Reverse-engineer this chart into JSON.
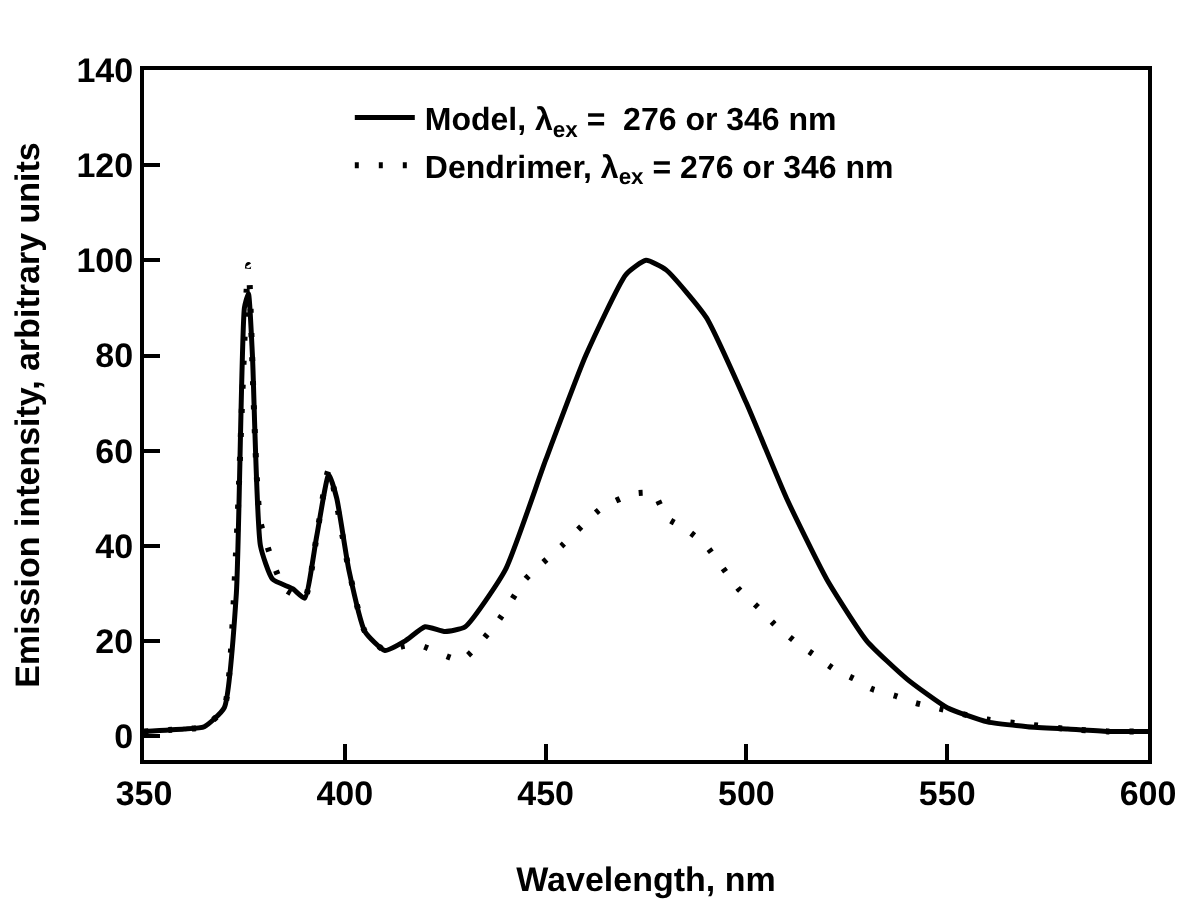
{
  "chart_data": {
    "type": "line",
    "xlabel": "Wavelength, nm",
    "ylabel": "Emission intensity, arbitrary units",
    "xlim": [
      350,
      600
    ],
    "xticks": [
      350,
      400,
      450,
      500,
      550,
      600
    ],
    "ylim": [
      -5,
      140
    ],
    "yticks": [
      0,
      20,
      40,
      60,
      80,
      100,
      120,
      140
    ],
    "legend": "top",
    "marker": "none",
    "series": [
      {
        "name": "Model, λ$_{ex}$ =  276 or 346 nm",
        "color": "#000000",
        "line_style": "solid",
        "x": [
          350,
          360,
          365,
          370,
          373,
          375,
          376,
          377,
          379,
          382,
          387,
          390,
          393,
          396,
          398,
          401,
          405,
          410,
          415,
          420,
          425,
          430,
          440,
          450,
          460,
          470,
          475,
          480,
          490,
          500,
          510,
          520,
          530,
          540,
          550,
          560,
          570,
          580,
          590,
          600
        ],
        "values": [
          1,
          1.5,
          2,
          6,
          30,
          90,
          93,
          80,
          40,
          33,
          31,
          29,
          42,
          55,
          50,
          35,
          22,
          18,
          20,
          23,
          22,
          23,
          35,
          58,
          80,
          97,
          100,
          98,
          88,
          70,
          50,
          33,
          20,
          12,
          6,
          3,
          2,
          1.5,
          1,
          1
        ]
      },
      {
        "name": "Dendrimer, λ$_{ex}$ = 276 or 346 nm",
        "color": "#000000",
        "line_style": "dotted",
        "x": [
          350,
          360,
          365,
          370,
          373,
          376,
          379,
          385,
          390,
          393,
          396,
          401,
          405,
          410,
          415,
          419,
          429,
          438,
          445,
          454,
          464,
          472,
          477,
          480,
          485,
          490,
          494,
          498,
          503,
          507,
          512,
          517,
          522,
          527,
          531,
          537,
          542,
          547,
          560,
          570,
          580,
          590,
          600
        ],
        "values": [
          1,
          1.5,
          2,
          6,
          40,
          99,
          45,
          31,
          29,
          42,
          56,
          35,
          22,
          18,
          19,
          19,
          16,
          24,
          33,
          40,
          48,
          51,
          51,
          46,
          43.5,
          40,
          35.5,
          31,
          27,
          23.5,
          20,
          17,
          14,
          12,
          10,
          8.5,
          7,
          6,
          3.5,
          2.5,
          1.5,
          1,
          1
        ]
      }
    ]
  }
}
